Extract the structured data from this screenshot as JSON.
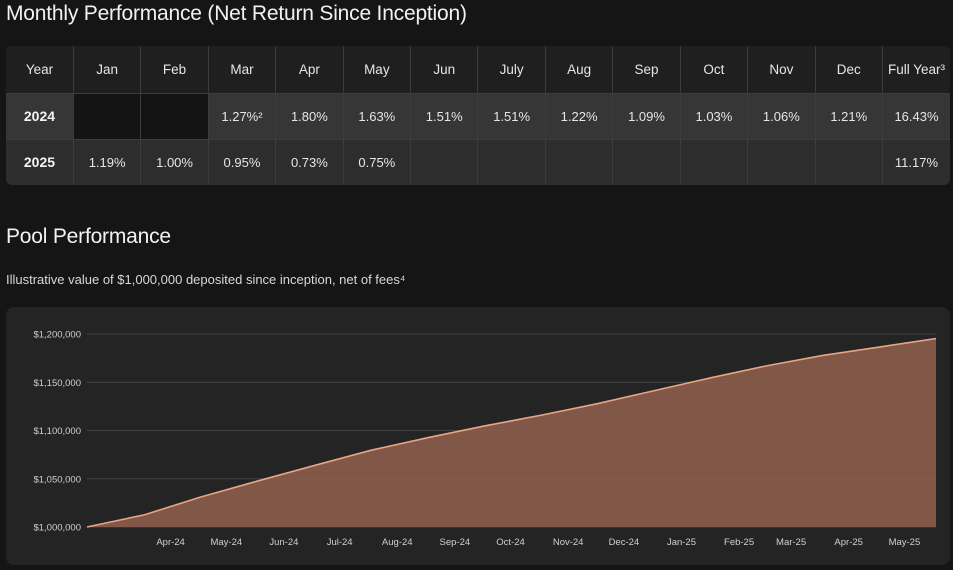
{
  "monthly": {
    "title": "Monthly Performance (Net Return Since Inception)",
    "headers": [
      "Year",
      "Jan",
      "Feb",
      "Mar",
      "Apr",
      "May",
      "Jun",
      "July",
      "Aug",
      "Sep",
      "Oct",
      "Nov",
      "Dec",
      "Full Year³"
    ],
    "rows": [
      {
        "year": "2024",
        "values": [
          "",
          "",
          "1.27%²",
          "1.80%",
          "1.63%",
          "1.51%",
          "1.51%",
          "1.22%",
          "1.09%",
          "1.03%",
          "1.06%",
          "1.21%"
        ],
        "full_year": "16.43%"
      },
      {
        "year": "2025",
        "values": [
          "1.19%",
          "1.00%",
          "0.95%",
          "0.73%",
          "0.75%",
          "",
          "",
          "",
          "",
          "",
          "",
          ""
        ],
        "full_year": "11.17%"
      }
    ]
  },
  "pool": {
    "title": "Pool Performance",
    "subtitle": "Illustrative value of $1,000,000 deposited since inception, net of fees⁴"
  },
  "chart_data": {
    "type": "area",
    "title": "",
    "xlabel": "",
    "ylabel": "",
    "x_tick_labels": [
      "Apr-24",
      "May-24",
      "Jun-24",
      "Jul-24",
      "Aug-24",
      "Sep-24",
      "Oct-24",
      "Nov-24",
      "Dec-24",
      "Jan-25",
      "Feb-25",
      "Mar-25",
      "Apr-25",
      "May-25"
    ],
    "y_tick_labels": [
      "$1,000,000",
      "$1,050,000",
      "$1,100,000",
      "$1,150,000",
      "$1,200,000"
    ],
    "y_ticks": [
      1000000,
      1050000,
      1100000,
      1150000,
      1200000
    ],
    "ylim": [
      1000000,
      1200000
    ],
    "series": [
      {
        "x": [
          "2024-03-01",
          "2024-04-01",
          "2024-05-01",
          "2024-06-01",
          "2024-07-01",
          "2024-08-01",
          "2024-09-01",
          "2024-10-01",
          "2024-11-01",
          "2024-12-01",
          "2025-01-01",
          "2025-02-01",
          "2025-03-01",
          "2025-04-01",
          "2025-05-01",
          "2025-06-01"
        ],
        "values": [
          1000000,
          1012700,
          1030929,
          1047733,
          1063554,
          1079613,
          1092785,
          1104696,
          1116074,
          1127904,
          1141552,
          1155136,
          1166687,
          1177770,
          1186368,
          1195266
        ]
      }
    ],
    "grid": true,
    "colors": {
      "fill": "#8a5c4c",
      "line": "#e7a585",
      "grid": "#444444"
    }
  }
}
